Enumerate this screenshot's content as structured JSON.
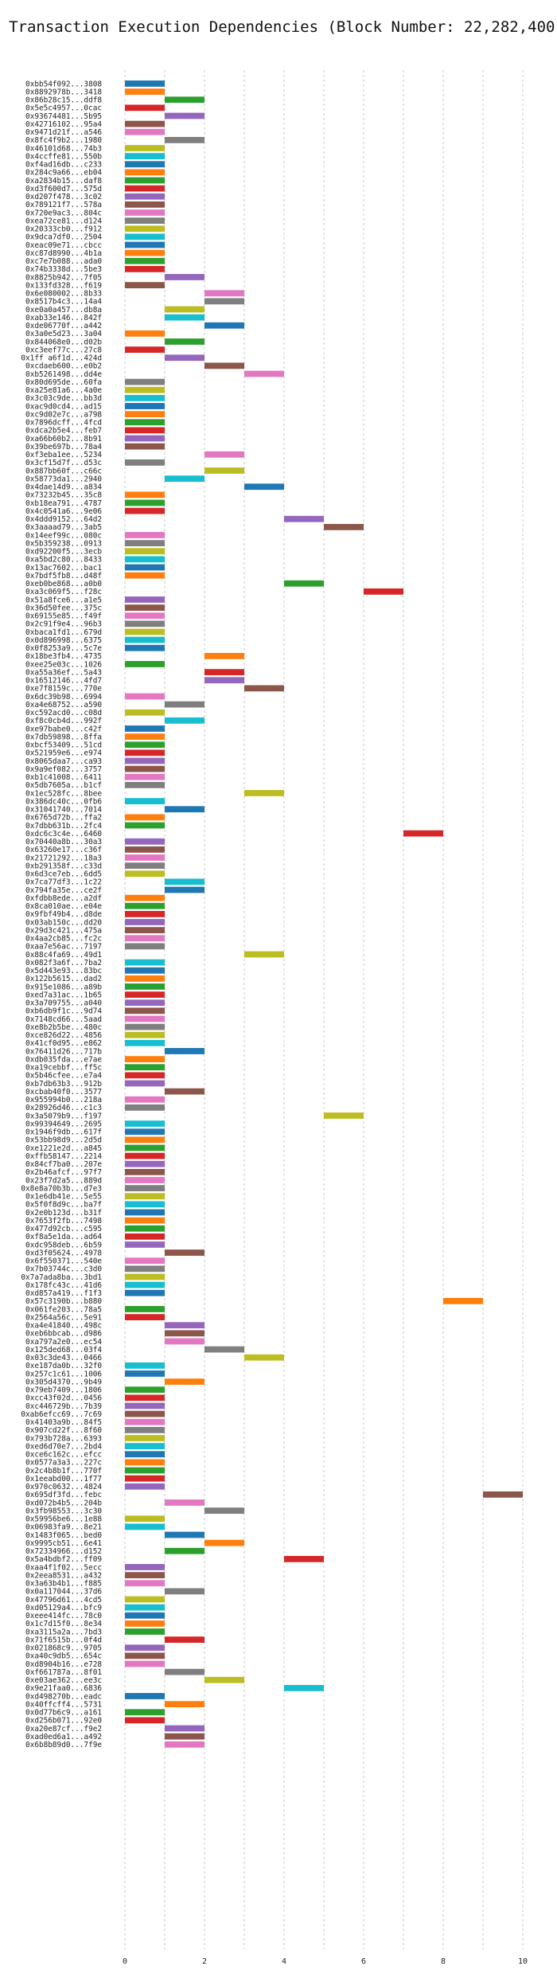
{
  "chart_data": {
    "type": "bar",
    "orientation": "horizontal-gantt",
    "title": "Transaction Execution Dependencies (Block Number: 22,282,400)",
    "xlabel": "",
    "ylabel": "",
    "xlim": [
      -0.5,
      10.5
    ],
    "xticks": [
      0,
      2,
      4,
      6,
      8,
      10
    ],
    "grid": true,
    "palette": [
      "#1f77b4",
      "#ff7f0e",
      "#2ca02c",
      "#d62728",
      "#9467bd",
      "#8c564b",
      "#e377c2",
      "#7f7f7f",
      "#bcbd22",
      "#17becf"
    ],
    "tx_labels": [
      "0xbb54f092...3808",
      "0x8892978b...3418",
      "0x86b28c15...ddf8",
      "0x5e5c4957...0cac",
      "0x93674481...5b95",
      "0x42716102...95a4",
      "0x9471d21f...a546",
      "0x8fc4f9b2...1980",
      "0x46101d68...74b3",
      "0x4ccffe81...550b",
      "0xf4ad16db...c233",
      "0x284c9a66...eb04",
      "0xa2834b15...daf8",
      "0xd3f600d7...575d",
      "0xd207f478...3c02",
      "0x789121f7...578a",
      "0x720e9ac3...804c",
      "0xea72ce81...d124",
      "0x20333cb0...f912",
      "0x9dca7df0...2504",
      "0xeac09e71...cbcc",
      "0xc87d8990...4b1a",
      "0xc7e7b088...ada0",
      "0x74b3338d...5be3",
      "0x8825b942...7f05",
      "0x133fd328...f619",
      "0x6e080002...8b33",
      "0x8517b4c3...14a4",
      "0xe0a0a457...db8a",
      "0xab33e146...842f",
      "0xde06770f...a442",
      "0x3a0e5d23...3a04",
      "0x844068e0...d02b",
      "0xc3eef77c...27c8",
      "0x1ff a6f1d...424d",
      "0xcdaeb600...e0b2",
      "0xb5261498...dd4e",
      "0x80d695de...60fa",
      "0xa25e81a6...4a0e",
      "0x3c03c9de...bb3d",
      "0xac9d0cd4...ad15",
      "0xc9d02e7c...a798",
      "0x7896dcff...4fcd",
      "0xdca2b5e4...feb7",
      "0xa66b60b2...8b91",
      "0x39be697b...78a4",
      "0xf3eba1ee...5234",
      "0x3cf15d7f...d53c",
      "0x887bb60f...c66c",
      "0x58773da1...2940",
      "0x4dae14d9...a834",
      "0x73232b45...35c8",
      "0xb18ea791...4787",
      "0x4c0541a6...9e06",
      "0x4ddd9152...64d2",
      "0x3aaaad79...3ab5",
      "0x14eef99c...080c",
      "0x5b359238...0913",
      "0xd92200f5...3ecb",
      "0xa5bd2c80...8433",
      "0x13ac7602...bac1",
      "0x7bdf5fb8...d48f",
      "0xeb0be868...a0b0",
      "0xa3c069f5...f28c",
      "0x51a8fce6...a1e5",
      "0x36d50fee...375c",
      "0x69155e85...f49f",
      "0x2c91f9e4...96b3",
      "0xbaca1fd1...679d",
      "0x0d896998...6375",
      "0x0f8253a9...5c7e",
      "0x18be3fb4...4735",
      "0xee25e03c...1026",
      "0xa55a36ef...5a43",
      "0x16512146...4fd7",
      "0xe7f8159c...770e",
      "0x6dc39b98...6994",
      "0xa4e68752...a590",
      "0xc592acd0...c08d",
      "0xf8c0cb4d...992f",
      "0xe97babe0...c42f",
      "0x7db59898...8ffa",
      "0xbcf53409...51cd",
      "0x521959e6...e974",
      "0x8065daa7...ca93",
      "0x9a9ef082...3757",
      "0xb1c41008...6411",
      "0x5db7605a...b1cf",
      "0x1ec528fc...8bee",
      "0x386dc40c...0fb6",
      "0x31041740...7014",
      "0x6765d72b...ffa2",
      "0x7dbb631b...2fc4",
      "0xdc6c3c4e...6460",
      "0x70440a8b...30a3",
      "0x63260e17...c36f",
      "0x21721292...18a3",
      "0xb291358f...c33d",
      "0x6d3ce7eb...6dd5",
      "0x7ca77df3...1c22",
      "0x794fa35e...ce2f",
      "0xfdbb8ede...a2df",
      "0x8ca010ae...e04e",
      "0x9fbf49b4...d8de",
      "0x03ab150c...dd20",
      "0x29d3c421...475a",
      "0x4aa2cb85...fc2c",
      "0xaa7e56ac...7197",
      "0x88c4fa69...49d1",
      "0x082f3a6f...7ba2",
      "0x5d443e93...83bc",
      "0x122b5615...dad2",
      "0x915e1086...a89b",
      "0xed7a31ac...1b65",
      "0x3a709755...a040",
      "0xb6db9f1c...9d74",
      "0x7148cd66...5aad",
      "0xe8b2b5be...480c",
      "0xce826d22...4856",
      "0x41cf0d95...e862",
      "0x76411d26...717b",
      "0xdb035fda...e7ae",
      "0xa19cebbf...ff5c",
      "0x5b46cfee...e7a4",
      "0xb7db63b3...912b",
      "0xcbab40f0...3577",
      "0x955994b0...218a",
      "0x28926d46...c1c3",
      "0x3a5079b9...f197",
      "0x99394649...2695",
      "0x1946f9db...617f",
      "0x53bb98d9...2d5d",
      "0xe1221e2d...a845",
      "0xffb58147...2214",
      "0x84cf7ba0...207e",
      "0x2b46afcf...97f7",
      "0x23f7d2a5...889d",
      "0x8e8a70b3b...d7e3",
      "0x1e6db41e...5e55",
      "0x5f0f8d9c...ba7f",
      "0x2e0b123d...b31f",
      "0x7653f2fb...7498",
      "0x477d92cb...c595",
      "0xf8a5e1da...ad64",
      "0xdc958deb...6b59",
      "0xd3f05624...4978",
      "0x6f550371...540e",
      "0x7b03744c...c3d0",
      "0x7a7ada8ba...3bd1",
      "0x178fc43c...41d6",
      "0xd857a419...f1f3",
      "0x57c3190b...b880",
      "0x061fe203...78a5",
      "0x2564a56c...5e91",
      "0xa4e41840...498c",
      "0xeb6bbcab...d986",
      "0xa797a2e0...ec54",
      "0x125ded68...03f4",
      "0x03c3de43...0466",
      "0xe187da0b...32f0",
      "0x257c1c61...1006",
      "0x305d4370...9b49",
      "0x79eb7409...1806",
      "0xcc43f02d...0456",
      "0xc446729b...7b39",
      "0xab6efcc69...7c69",
      "0x41403a9b...84f5",
      "0x907cd22f...8f60",
      "0x793b728a...6393",
      "0xed6d70e7...2bd4",
      "0xce6c162c...efcc",
      "0x0577a3a3...227c",
      "0x2c4b8b1f...770f",
      "0x1eeabd00...1f77",
      "0x970c0632...4824",
      "0x695df3fd...febc",
      "0xd072b4b5...204b",
      "0x3fb98553...3c30",
      "0x59956be6...1e88",
      "0x06983fa9...8e21",
      "0x1483f065...bed0",
      "0x9995cb51...6e41",
      "0x72334966...d152",
      "0x5a4bdbf2...ff09",
      "0xaa4f1f02...5ecc",
      "0x2eea8531...a432",
      "0x3a63b4b1...f885",
      "0x0a117044...37d6",
      "0x47796d61...4cd5",
      "0xd05129a4...bfc9",
      "0xeee414fc...78c0",
      "0x1c7d15f0...8e34",
      "0xa3115a2a...7bd3",
      "0x71f6515b...0f4d",
      "0x021868c9...9705",
      "0xa40c9db5...654c",
      "0xd8904b16...e728",
      "0xf661787a...8f01",
      "0xe03ae362...ee3c",
      "0x9e21faa0...6836",
      "0xd498270b...eadc",
      "0x40ffcff4...5731",
      "0x0d77b6c9...a161",
      "0xd256b071...92e0",
      "0xa20e87cf...f9e2",
      "0xad0ed6a1...a492",
      "0x6b8b89d0...7f9e"
    ],
    "bars": [
      [
        0,
        1,
        0
      ],
      [
        0,
        1,
        1
      ],
      [
        1,
        2,
        2
      ],
      [
        0,
        1,
        3
      ],
      [
        1,
        2,
        4
      ],
      [
        0,
        1,
        5
      ],
      [
        0,
        1,
        6
      ],
      [
        1,
        2,
        7
      ],
      [
        0,
        1,
        8
      ],
      [
        0,
        1,
        9
      ],
      [
        0,
        1,
        0
      ],
      [
        0,
        1,
        1
      ],
      [
        0,
        1,
        2
      ],
      [
        0,
        1,
        3
      ],
      [
        0,
        1,
        4
      ],
      [
        0,
        1,
        5
      ],
      [
        0,
        1,
        6
      ],
      [
        0,
        1,
        7
      ],
      [
        0,
        1,
        8
      ],
      [
        0,
        1,
        9
      ],
      [
        0,
        1,
        0
      ],
      [
        0,
        1,
        1
      ],
      [
        0,
        1,
        2
      ],
      [
        0,
        1,
        3
      ],
      [
        1,
        2,
        4
      ],
      [
        0,
        1,
        5
      ],
      [
        2,
        3,
        6
      ],
      [
        2,
        3,
        7
      ],
      [
        1,
        2,
        8
      ],
      [
        1,
        2,
        9
      ],
      [
        2,
        3,
        0
      ],
      [
        0,
        1,
        1
      ],
      [
        1,
        2,
        2
      ],
      [
        0,
        1,
        3
      ],
      [
        1,
        2,
        4
      ],
      [
        2,
        3,
        5
      ],
      [
        3,
        4,
        6
      ],
      [
        0,
        1,
        7
      ],
      [
        0,
        1,
        8
      ],
      [
        0,
        1,
        9
      ],
      [
        0,
        1,
        0
      ],
      [
        0,
        1,
        1
      ],
      [
        0,
        1,
        2
      ],
      [
        0,
        1,
        3
      ],
      [
        0,
        1,
        4
      ],
      [
        0,
        1,
        5
      ],
      [
        2,
        3,
        6
      ],
      [
        0,
        1,
        7
      ],
      [
        2,
        3,
        8
      ],
      [
        1,
        2,
        9
      ],
      [
        3,
        4,
        0
      ],
      [
        0,
        1,
        1
      ],
      [
        0,
        1,
        2
      ],
      [
        0,
        1,
        3
      ],
      [
        4,
        5,
        4
      ],
      [
        5,
        6,
        5
      ],
      [
        0,
        1,
        6
      ],
      [
        0,
        1,
        7
      ],
      [
        0,
        1,
        8
      ],
      [
        0,
        1,
        9
      ],
      [
        0,
        1,
        0
      ],
      [
        0,
        1,
        1
      ],
      [
        4,
        5,
        2
      ],
      [
        6,
        7,
        3
      ],
      [
        0,
        1,
        4
      ],
      [
        0,
        1,
        5
      ],
      [
        0,
        1,
        6
      ],
      [
        0,
        1,
        7
      ],
      [
        0,
        1,
        8
      ],
      [
        0,
        1,
        9
      ],
      [
        0,
        1,
        0
      ],
      [
        2,
        3,
        1
      ],
      [
        0,
        1,
        2
      ],
      [
        2,
        3,
        3
      ],
      [
        2,
        3,
        4
      ],
      [
        3,
        4,
        5
      ],
      [
        0,
        1,
        6
      ],
      [
        1,
        2,
        7
      ],
      [
        0,
        1,
        8
      ],
      [
        1,
        2,
        9
      ],
      [
        0,
        1,
        0
      ],
      [
        0,
        1,
        1
      ],
      [
        0,
        1,
        2
      ],
      [
        0,
        1,
        3
      ],
      [
        0,
        1,
        4
      ],
      [
        0,
        1,
        5
      ],
      [
        0,
        1,
        6
      ],
      [
        0,
        1,
        7
      ],
      [
        3,
        4,
        8
      ],
      [
        0,
        1,
        9
      ],
      [
        1,
        2,
        0
      ],
      [
        0,
        1,
        1
      ],
      [
        0,
        1,
        2
      ],
      [
        7,
        8,
        3
      ],
      [
        0,
        1,
        4
      ],
      [
        0,
        1,
        5
      ],
      [
        0,
        1,
        6
      ],
      [
        0,
        1,
        7
      ],
      [
        0,
        1,
        8
      ],
      [
        1,
        2,
        9
      ],
      [
        1,
        2,
        0
      ],
      [
        0,
        1,
        1
      ],
      [
        0,
        1,
        2
      ],
      [
        0,
        1,
        3
      ],
      [
        0,
        1,
        4
      ],
      [
        0,
        1,
        5
      ],
      [
        0,
        1,
        6
      ],
      [
        0,
        1,
        7
      ],
      [
        3,
        4,
        8
      ],
      [
        0,
        1,
        9
      ],
      [
        0,
        1,
        0
      ],
      [
        0,
        1,
        1
      ],
      [
        0,
        1,
        2
      ],
      [
        0,
        1,
        3
      ],
      [
        0,
        1,
        4
      ],
      [
        0,
        1,
        5
      ],
      [
        0,
        1,
        6
      ],
      [
        0,
        1,
        7
      ],
      [
        0,
        1,
        8
      ],
      [
        0,
        1,
        9
      ],
      [
        1,
        2,
        0
      ],
      [
        0,
        1,
        1
      ],
      [
        0,
        1,
        2
      ],
      [
        0,
        1,
        3
      ],
      [
        0,
        1,
        4
      ],
      [
        1,
        2,
        5
      ],
      [
        0,
        1,
        6
      ],
      [
        0,
        1,
        7
      ],
      [
        5,
        6,
        8
      ],
      [
        0,
        1,
        9
      ],
      [
        0,
        1,
        0
      ],
      [
        0,
        1,
        1
      ],
      [
        0,
        1,
        2
      ],
      [
        0,
        1,
        3
      ],
      [
        0,
        1,
        4
      ],
      [
        0,
        1,
        5
      ],
      [
        0,
        1,
        6
      ],
      [
        0,
        1,
        7
      ],
      [
        0,
        1,
        8
      ],
      [
        0,
        1,
        9
      ],
      [
        0,
        1,
        0
      ],
      [
        0,
        1,
        1
      ],
      [
        0,
        1,
        2
      ],
      [
        0,
        1,
        3
      ],
      [
        0,
        1,
        4
      ],
      [
        1,
        2,
        5
      ],
      [
        0,
        1,
        6
      ],
      [
        0,
        1,
        7
      ],
      [
        0,
        1,
        8
      ],
      [
        0,
        1,
        9
      ],
      [
        0,
        1,
        0
      ],
      [
        8,
        9,
        1
      ],
      [
        0,
        1,
        2
      ],
      [
        0,
        1,
        3
      ],
      [
        1,
        2,
        4
      ],
      [
        1,
        2,
        5
      ],
      [
        1,
        2,
        6
      ],
      [
        2,
        3,
        7
      ],
      [
        3,
        4,
        8
      ],
      [
        0,
        1,
        9
      ],
      [
        0,
        1,
        0
      ],
      [
        1,
        2,
        1
      ],
      [
        0,
        1,
        2
      ],
      [
        0,
        1,
        3
      ],
      [
        0,
        1,
        4
      ],
      [
        0,
        1,
        5
      ],
      [
        0,
        1,
        6
      ],
      [
        0,
        1,
        7
      ],
      [
        0,
        1,
        8
      ],
      [
        0,
        1,
        9
      ],
      [
        0,
        1,
        0
      ],
      [
        0,
        1,
        1
      ],
      [
        0,
        1,
        2
      ],
      [
        0,
        1,
        3
      ],
      [
        0,
        1,
        4
      ],
      [
        9,
        10,
        5
      ],
      [
        1,
        2,
        6
      ],
      [
        2,
        3,
        7
      ],
      [
        0,
        1,
        8
      ],
      [
        0,
        1,
        9
      ],
      [
        1,
        2,
        0
      ],
      [
        2,
        3,
        1
      ],
      [
        1,
        2,
        2
      ],
      [
        4,
        5,
        3
      ],
      [
        0,
        1,
        4
      ],
      [
        0,
        1,
        5
      ],
      [
        0,
        1,
        6
      ],
      [
        1,
        2,
        7
      ],
      [
        0,
        1,
        8
      ],
      [
        0,
        1,
        9
      ],
      [
        0,
        1,
        0
      ],
      [
        0,
        1,
        1
      ],
      [
        0,
        1,
        2
      ],
      [
        1,
        2,
        3
      ],
      [
        0,
        1,
        4
      ],
      [
        0,
        1,
        5
      ],
      [
        0,
        1,
        6
      ],
      [
        1,
        2,
        7
      ],
      [
        2,
        3,
        8
      ],
      [
        4,
        5,
        9
      ],
      [
        0,
        1,
        0
      ],
      [
        1,
        2,
        1
      ],
      [
        0,
        1,
        2
      ],
      [
        0,
        1,
        3
      ],
      [
        1,
        2,
        4
      ],
      [
        1,
        2,
        5
      ],
      [
        1,
        2,
        6
      ]
    ]
  }
}
